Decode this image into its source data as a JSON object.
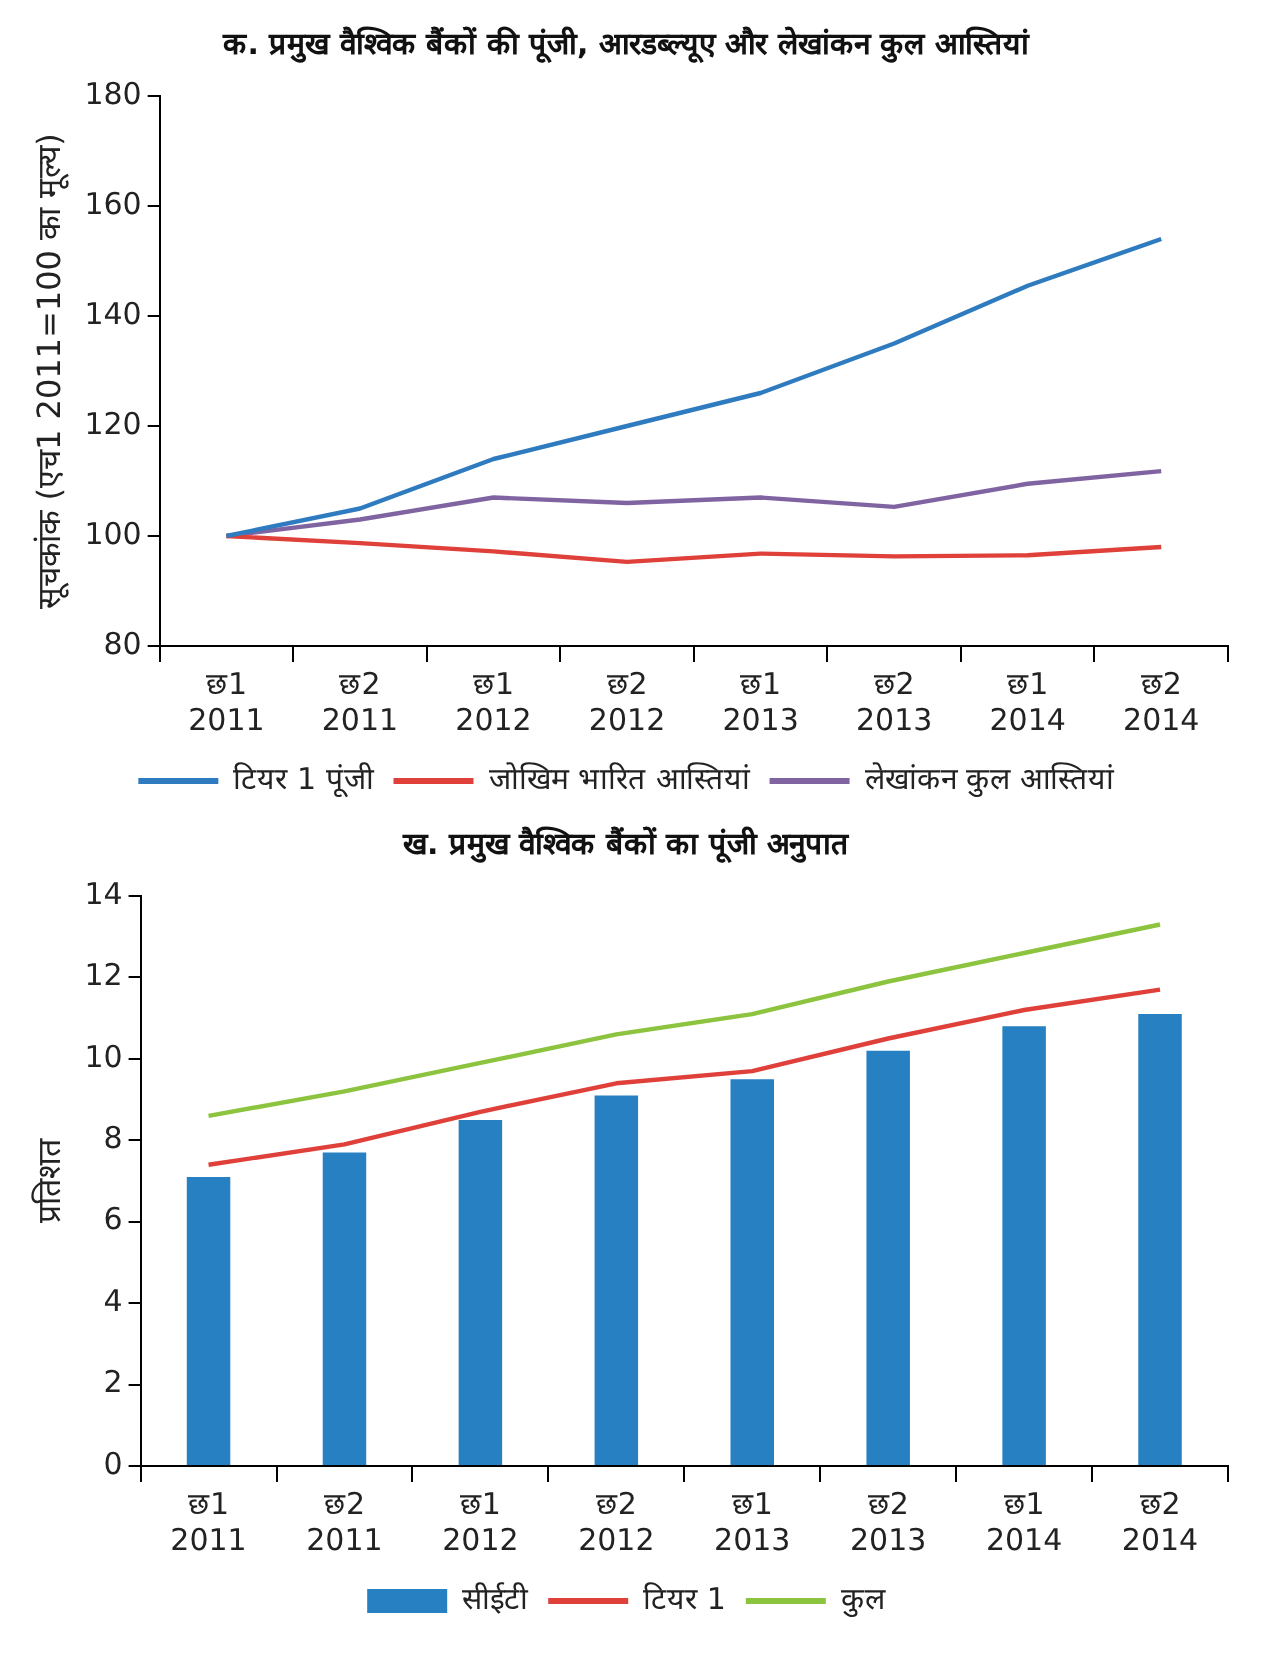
{
  "chart_data": [
    {
      "type": "line",
      "title": "क. प्रमुख वैश्विक बैंकों की पूंजी, आरडब्ल्यूए और लेखांकन कुल आस्तियां",
      "ylabel": "सूचकांक (एच1 2011=100 का मूल्य)",
      "categories": [
        "छ1 2011",
        "छ2 2011",
        "छ1 2012",
        "छ2 2012",
        "छ1 2013",
        "छ2 2013",
        "छ1 2014",
        "छ2 2014"
      ],
      "series": [
        {
          "name": "टियर 1 पूंजी",
          "color": "#2e7bbf",
          "values": [
            100,
            105,
            114,
            120,
            126,
            135,
            145.5,
            154
          ]
        },
        {
          "name": "जोखिम भारित आस्तियां",
          "color": "#e0403a",
          "values": [
            100,
            98.7,
            97.2,
            95.3,
            96.8,
            96.3,
            96.5,
            98
          ]
        },
        {
          "name": "लेखांकन कुल आस्तियां",
          "color": "#8064a2",
          "values": [
            100,
            103,
            107,
            106,
            107,
            105.3,
            109.5,
            111.8
          ]
        }
      ],
      "ylim": [
        80,
        180
      ],
      "yticks": [
        80,
        100,
        120,
        140,
        160,
        180
      ],
      "legend": "bottom",
      "marker": "none"
    },
    {
      "type": "bar",
      "title": "ख. प्रमुख वैश्विक बैंकों का पूंजी अनुपात",
      "ylabel": "प्रतिशत",
      "categories": [
        "छ1 2011",
        "छ2 2011",
        "छ1 2012",
        "छ2 2012",
        "छ1 2013",
        "छ2 2013",
        "छ1 2014",
        "छ2 2014"
      ],
      "series": [
        {
          "name": "सीईटी",
          "type": "bar",
          "color": "#2680c2",
          "values": [
            7.1,
            7.7,
            8.5,
            9.1,
            9.5,
            10.2,
            10.8,
            11.1
          ]
        },
        {
          "name": "टियर 1",
          "type": "line",
          "color": "#e0403a",
          "values": [
            7.4,
            7.9,
            8.7,
            9.4,
            9.7,
            10.5,
            11.2,
            11.7
          ]
        },
        {
          "name": "कुल",
          "type": "line",
          "color": "#8cc43f",
          "values": [
            8.6,
            9.2,
            9.9,
            10.6,
            11.1,
            11.9,
            12.6,
            13.3
          ]
        }
      ],
      "ylim": [
        0,
        14
      ],
      "yticks": [
        0,
        2,
        4,
        6,
        8,
        10,
        12,
        14
      ],
      "legend": "bottom",
      "marker": "none"
    }
  ]
}
